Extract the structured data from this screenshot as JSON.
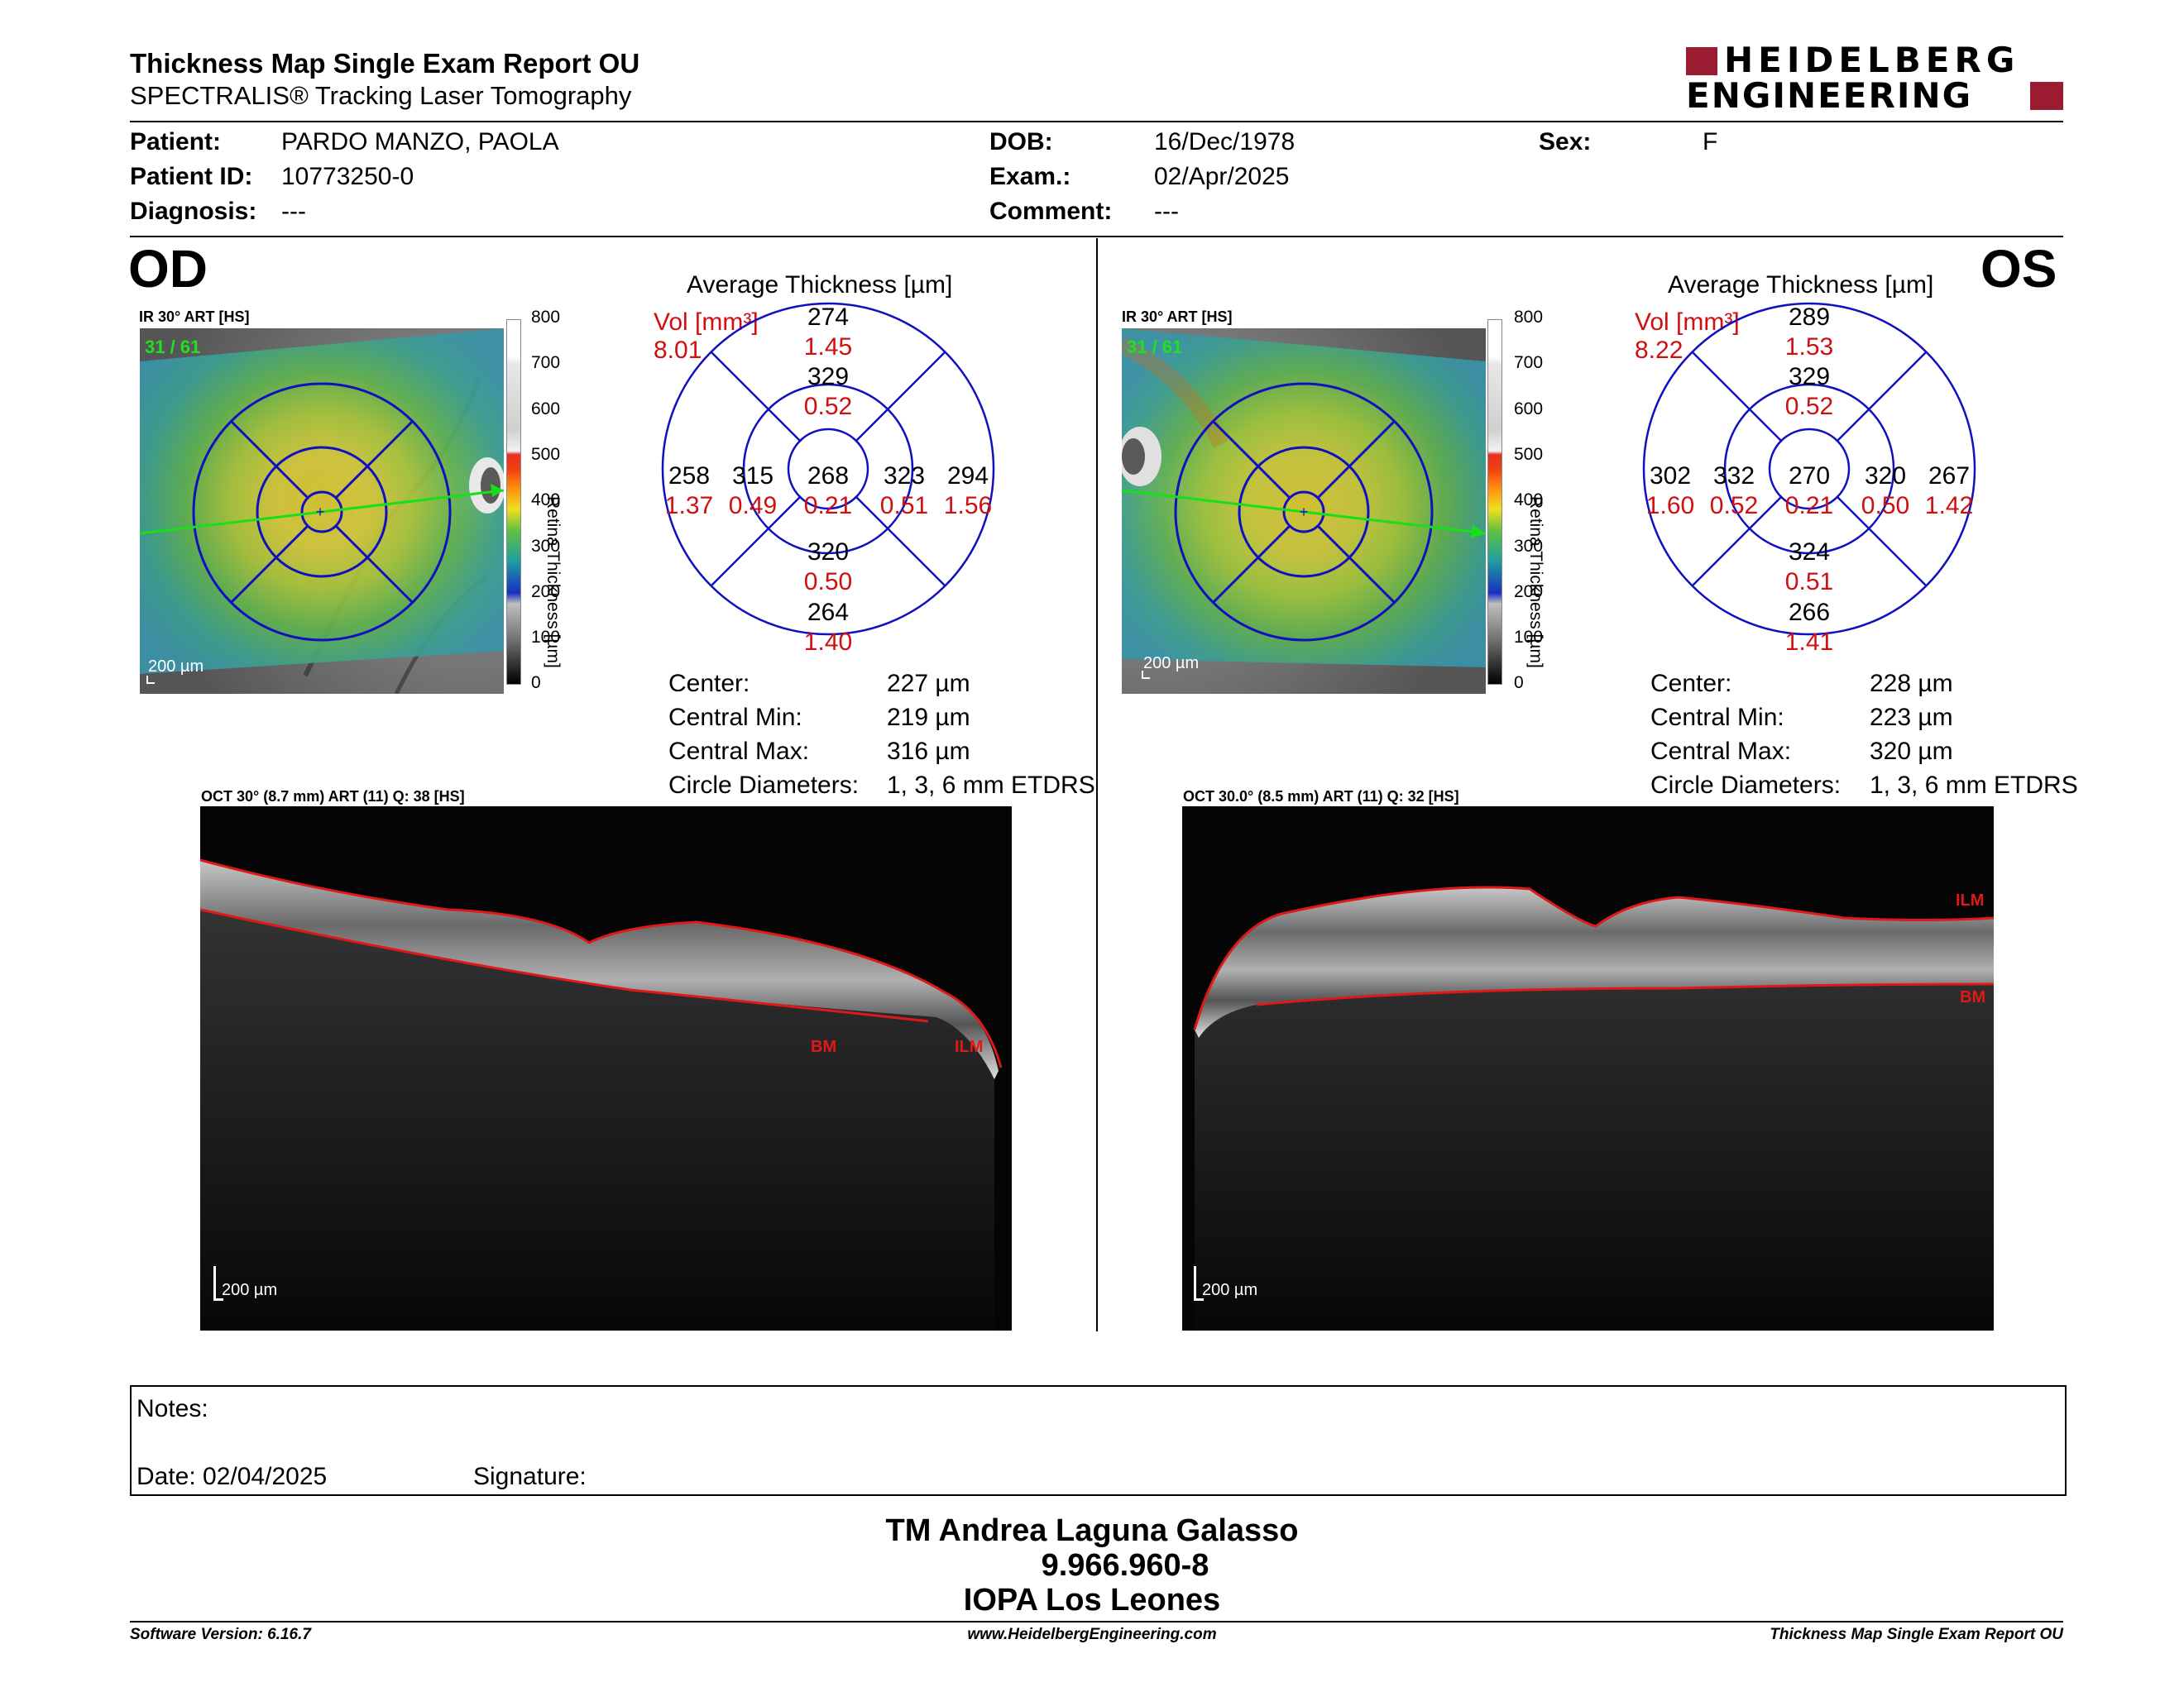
{
  "header": {
    "title": "Thickness Map Single Exam Report OU",
    "subtitle": "SPECTRALIS® Tracking Laser Tomography",
    "logo_line1": "HEIDELBERG",
    "logo_line2": "ENGINEERING",
    "brand_color": "#9b1b30"
  },
  "patient": {
    "patient_label": "Patient:",
    "patient_value": "PARDO MANZO, PAOLA",
    "id_label": "Patient ID:",
    "id_value": "10773250-0",
    "diagnosis_label": "Diagnosis:",
    "diagnosis_value": "---",
    "dob_label": "DOB:",
    "dob_value": "16/Dec/1978",
    "exam_label": "Exam.:",
    "exam_value": "02/Apr/2025",
    "comment_label": "Comment:",
    "comment_value": "---",
    "sex_label": "Sex:",
    "sex_value": "F"
  },
  "colorbar": {
    "ticks": [
      "800",
      "700",
      "600",
      "500",
      "400",
      "300",
      "200",
      "100",
      "0"
    ],
    "label": "Retina  Thickness [µm]"
  },
  "od": {
    "eye": "OD",
    "ir_label": "IR 30° ART [HS]",
    "frames": "31 / 61",
    "scale": "200 µm",
    "avg_title": "Average Thickness [µm]",
    "vol_label": "Vol [mm³]",
    "vol_value": "8.01",
    "sectors": {
      "outer_top": {
        "t": "274",
        "v": "1.45"
      },
      "inner_top": {
        "t": "329",
        "v": "0.52"
      },
      "outer_left": {
        "t": "258",
        "v": "1.37"
      },
      "inner_left": {
        "t": "315",
        "v": "0.49"
      },
      "center": {
        "t": "268",
        "v": "0.21"
      },
      "inner_right": {
        "t": "323",
        "v": "0.51"
      },
      "outer_right": {
        "t": "294",
        "v": "1.56"
      },
      "inner_bottom": {
        "t": "320",
        "v": "0.50"
      },
      "outer_bottom": {
        "t": "264",
        "v": "1.40"
      }
    },
    "stats": {
      "center_label": "Center:",
      "center_value": "227 µm",
      "min_label": "Central Min:",
      "min_value": "219 µm",
      "max_label": "Central Max:",
      "max_value": "316 µm",
      "diam_label": "Circle Diameters:",
      "diam_value": "1, 3, 6 mm ETDRS"
    },
    "oct_label": "OCT 30° (8.7 mm) ART (11) Q: 38 [HS]",
    "oct_scale": "200 µm",
    "ilm": "ILM",
    "bm": "BM"
  },
  "os": {
    "eye": "OS",
    "ir_label": "IR 30° ART [HS]",
    "frames": "31 / 61",
    "scale": "200 µm",
    "avg_title": "Average Thickness [µm]",
    "vol_label": "Vol [mm³]",
    "vol_value": "8.22",
    "sectors": {
      "outer_top": {
        "t": "289",
        "v": "1.53"
      },
      "inner_top": {
        "t": "329",
        "v": "0.52"
      },
      "outer_left": {
        "t": "302",
        "v": "1.60"
      },
      "inner_left": {
        "t": "332",
        "v": "0.52"
      },
      "center": {
        "t": "270",
        "v": "0.21"
      },
      "inner_right": {
        "t": "320",
        "v": "0.50"
      },
      "outer_right": {
        "t": "267",
        "v": "1.42"
      },
      "inner_bottom": {
        "t": "324",
        "v": "0.51"
      },
      "outer_bottom": {
        "t": "266",
        "v": "1.41"
      }
    },
    "stats": {
      "center_label": "Center:",
      "center_value": "228 µm",
      "min_label": "Central Min:",
      "min_value": "223 µm",
      "max_label": "Central Max:",
      "max_value": "320 µm",
      "diam_label": "Circle Diameters:",
      "diam_value": "1, 3, 6 mm ETDRS"
    },
    "oct_label": "OCT 30.0° (8.5 mm) ART (11) Q: 32 [HS]",
    "oct_scale": "200 µm",
    "ilm": "ILM",
    "bm": "BM"
  },
  "notes": {
    "notes_label": "Notes:",
    "date_label": "Date: 02/04/2025",
    "signature_label": "Signature:"
  },
  "signature": {
    "line1": "TM Andrea Laguna Galasso",
    "line2": "9.966.960-8",
    "line3": "IOPA Los Leones"
  },
  "footer": {
    "left": "Software Version: 6.16.7",
    "center": "www.HeidelbergEngineering.com",
    "right": "Thickness Map Single Exam Report OU"
  }
}
